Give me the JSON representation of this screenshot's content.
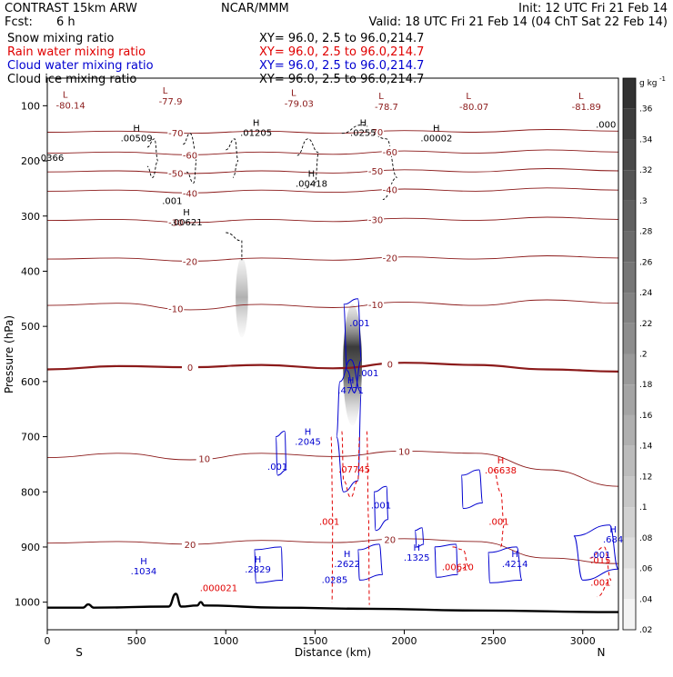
{
  "header": {
    "model": "CONTRAST 15km ARW",
    "org": "NCAR/MMM",
    "init": "Init: 12 UTC Fri 21 Feb 14",
    "fcst_label": "Fcst:",
    "fcst_value": "6 h",
    "valid": "Valid: 18 UTC Fri 21 Feb 14 (04 ChT Sat 22 Feb 14)"
  },
  "fields": [
    {
      "name": "Snow mixing ratio",
      "xy": "",
      "color": "#000000"
    },
    {
      "name": "Rain water mixing ratio",
      "xy": "XY=  96.0,  2.5 to  96.0,214.7",
      "color": "#e00000"
    },
    {
      "name": "Cloud water mixing ratio",
      "xy": "XY=  96.0,  2.5 to  96.0,214.7",
      "color": "#0000d0"
    },
    {
      "name": "Cloud ice mixing ratio",
      "xy": "XY=  96.0,  2.5 to  96.0,214.7",
      "color": "#000000"
    }
  ],
  "snow_xy": "XY=  96.0,  2.5 to  96.0,214.7",
  "chart_data": {
    "type": "contour",
    "xlabel": "Distance (km)",
    "ylabel": "Pressure (hPa)",
    "xlim": [
      0,
      3200
    ],
    "ylim": [
      1050,
      50
    ],
    "x_ticks": [
      0,
      500,
      1000,
      1500,
      2000,
      2500,
      3000
    ],
    "y_ticks": [
      100,
      200,
      300,
      400,
      500,
      600,
      700,
      800,
      900,
      1000
    ],
    "x_end_labels": {
      "left": "S",
      "right": "N"
    },
    "colorbar": {
      "unit": "g kg",
      "unit_exp": "-1",
      "ticks": [
        ".36",
        ".34",
        ".32",
        ".3",
        ".28",
        ".26",
        ".24",
        ".22",
        ".2",
        ".18",
        ".16",
        ".14",
        ".12",
        ".1",
        ".08",
        ".06",
        ".04",
        ".02"
      ],
      "colors": {
        "low": "#ffffff",
        "high": "#333333"
      }
    },
    "colors": {
      "temperature": "#8b1a1a",
      "rain": "#e00000",
      "cloud_water": "#0000d0",
      "cloud_ice": "#000000",
      "terrain": "#000000"
    },
    "temperature_contours": [
      {
        "level": -70,
        "label": "-70",
        "points": [
          [
            0,
            148
          ],
          [
            400,
            146
          ],
          [
            800,
            150
          ],
          [
            1200,
            146
          ],
          [
            1600,
            150
          ],
          [
            2000,
            145
          ],
          [
            2400,
            148
          ],
          [
            2800,
            143
          ],
          [
            3200,
            146
          ]
        ]
      },
      {
        "level": -60,
        "label": "-60",
        "points": [
          [
            0,
            186
          ],
          [
            400,
            184
          ],
          [
            800,
            189
          ],
          [
            1200,
            184
          ],
          [
            1600,
            188
          ],
          [
            2000,
            182
          ],
          [
            2400,
            186
          ],
          [
            2800,
            180
          ],
          [
            3200,
            184
          ]
        ]
      },
      {
        "level": -50,
        "label": "-50",
        "points": [
          [
            0,
            220
          ],
          [
            400,
            218
          ],
          [
            800,
            223
          ],
          [
            1200,
            218
          ],
          [
            1600,
            222
          ],
          [
            2000,
            216
          ],
          [
            2400,
            220
          ],
          [
            2800,
            214
          ],
          [
            3200,
            218
          ]
        ]
      },
      {
        "level": -40,
        "label": "-40",
        "points": [
          [
            0,
            255
          ],
          [
            400,
            253
          ],
          [
            800,
            258
          ],
          [
            1200,
            253
          ],
          [
            1600,
            257
          ],
          [
            2000,
            251
          ],
          [
            2400,
            255
          ],
          [
            2800,
            249
          ],
          [
            3200,
            253
          ]
        ]
      },
      {
        "level": -30,
        "label": "-30",
        "points": [
          [
            0,
            308
          ],
          [
            400,
            306
          ],
          [
            800,
            312
          ],
          [
            1200,
            306
          ],
          [
            1600,
            310
          ],
          [
            2000,
            304
          ],
          [
            2400,
            308
          ],
          [
            2800,
            302
          ],
          [
            3200,
            306
          ]
        ]
      },
      {
        "level": -20,
        "label": "-20",
        "points": [
          [
            0,
            378
          ],
          [
            400,
            376
          ],
          [
            800,
            382
          ],
          [
            1200,
            376
          ],
          [
            1600,
            380
          ],
          [
            2000,
            374
          ],
          [
            2400,
            378
          ],
          [
            2800,
            372
          ],
          [
            3200,
            376
          ]
        ]
      },
      {
        "level": -10,
        "label": "-10",
        "points": [
          [
            0,
            462
          ],
          [
            400,
            458
          ],
          [
            800,
            470
          ],
          [
            1200,
            460
          ],
          [
            1600,
            466
          ],
          [
            2000,
            456
          ],
          [
            2400,
            462
          ],
          [
            2800,
            452
          ],
          [
            3200,
            458
          ]
        ]
      },
      {
        "level": 0,
        "label": "0",
        "points": [
          [
            0,
            578
          ],
          [
            400,
            572
          ],
          [
            800,
            574
          ],
          [
            1200,
            570
          ],
          [
            1600,
            576
          ],
          [
            2000,
            566
          ],
          [
            2400,
            570
          ],
          [
            2800,
            578
          ],
          [
            3200,
            582
          ]
        ]
      },
      {
        "level": 10,
        "label": "10",
        "points": [
          [
            0,
            738
          ],
          [
            400,
            730
          ],
          [
            800,
            742
          ],
          [
            1200,
            730
          ],
          [
            1600,
            736
          ],
          [
            2000,
            726
          ],
          [
            2400,
            730
          ],
          [
            2800,
            760
          ],
          [
            3200,
            790
          ]
        ]
      },
      {
        "level": 20,
        "label": "20",
        "points": [
          [
            0,
            893
          ],
          [
            400,
            890
          ],
          [
            800,
            895
          ],
          [
            1200,
            888
          ],
          [
            1600,
            892
          ],
          [
            2000,
            885
          ],
          [
            2400,
            890
          ],
          [
            2800,
            920
          ],
          [
            3200,
            930
          ]
        ]
      }
    ],
    "min_labels": [
      {
        "x": 100,
        "p": 95,
        "type": "L",
        "value": "-80.14"
      },
      {
        "x": 660,
        "p": 88,
        "type": "L",
        "value": "-77.9"
      },
      {
        "x": 1380,
        "p": 92,
        "type": "L",
        "value": "-79.03"
      },
      {
        "x": 1870,
        "p": 98,
        "type": "L",
        "value": "-78.7"
      },
      {
        "x": 2360,
        "p": 98,
        "type": "L",
        "value": "-80.07"
      },
      {
        "x": 2990,
        "p": 98,
        "type": "L",
        "value": "-81.89"
      }
    ],
    "max_labels": [
      {
        "x": 500,
        "p": 158,
        "value": ".00509",
        "color": "#000000"
      },
      {
        "x": 1170,
        "p": 148,
        "value": ".01205",
        "color": "#000000"
      },
      {
        "x": 1770,
        "p": 148,
        "value": ".0255",
        "color": "#000000"
      },
      {
        "x": 2180,
        "p": 158,
        "value": ".00002",
        "color": "#000000"
      },
      {
        "x": 1480,
        "p": 240,
        "value": ".00418",
        "color": "#000000"
      },
      {
        "x": 780,
        "p": 310,
        "value": ".00621",
        "color": "#000000"
      },
      {
        "x": 1700,
        "p": 615,
        "value": ".4771",
        "color": "#0000d0"
      },
      {
        "x": 1460,
        "p": 708,
        "value": ".2045",
        "color": "#0000d0"
      },
      {
        "x": 2540,
        "p": 760,
        "value": ".06638",
        "color": "#e00000"
      },
      {
        "x": 1680,
        "p": 930,
        "value": ".2622",
        "color": "#0000d0"
      },
      {
        "x": 1180,
        "p": 940,
        "value": ".2829",
        "color": "#0000d0"
      },
      {
        "x": 2070,
        "p": 918,
        "value": ".1325",
        "color": "#0000d0"
      },
      {
        "x": 2620,
        "p": 930,
        "value": ".4214",
        "color": "#0000d0"
      },
      {
        "x": 540,
        "p": 943,
        "value": ".1034",
        "color": "#0000d0"
      },
      {
        "x": 3170,
        "p": 885,
        "value": ".684",
        "color": "#0000d0"
      }
    ],
    "contour_labels": [
      {
        "x": 20,
        "p": 200,
        "value": ".0366",
        "color": "#000000"
      },
      {
        "x": 700,
        "p": 278,
        "value": ".001",
        "color": "#000000"
      },
      {
        "x": 1750,
        "p": 500,
        "value": ".001",
        "color": "#0000d0"
      },
      {
        "x": 1800,
        "p": 590,
        "value": ".001",
        "color": "#0000d0"
      },
      {
        "x": 1290,
        "p": 760,
        "value": ".001",
        "color": "#0000d0"
      },
      {
        "x": 1870,
        "p": 830,
        "value": ".001",
        "color": "#0000d0"
      },
      {
        "x": 1580,
        "p": 860,
        "value": ".001",
        "color": "#e00000"
      },
      {
        "x": 2530,
        "p": 860,
        "value": ".001",
        "color": "#e00000"
      },
      {
        "x": 1610,
        "p": 965,
        "value": ".0285",
        "color": "#0000d0"
      },
      {
        "x": 960,
        "p": 980,
        "value": ".000021",
        "color": "#e00000"
      },
      {
        "x": 1720,
        "p": 765,
        "value": ".07745",
        "color": "#e00000"
      },
      {
        "x": 2300,
        "p": 942,
        "value": ".00610",
        "color": "#e00000"
      },
      {
        "x": 3100,
        "p": 930,
        "value": ".015",
        "color": "#e00000"
      },
      {
        "x": 3100,
        "p": 970,
        "value": ".001",
        "color": "#e00000"
      },
      {
        "x": 3100,
        "p": 920,
        "value": ".001",
        "color": "#0000d0"
      },
      {
        "x": 3130,
        "p": 140,
        "value": ".000",
        "color": "#000000"
      }
    ],
    "snow_shading": [
      {
        "x": 1090,
        "p_top": 375,
        "p_bottom": 520,
        "max": 0.12
      },
      {
        "x": 1710,
        "p_top": 460,
        "p_bottom": 680,
        "max": 0.36
      }
    ],
    "terrain": [
      [
        0,
        1010
      ],
      [
        200,
        1010
      ],
      [
        230,
        1004
      ],
      [
        260,
        1010
      ],
      [
        680,
        1008
      ],
      [
        720,
        985
      ],
      [
        750,
        1008
      ],
      [
        840,
        1006
      ],
      [
        860,
        1000
      ],
      [
        880,
        1006
      ],
      [
        1300,
        1010
      ],
      [
        1800,
        1012
      ],
      [
        2400,
        1015
      ],
      [
        3200,
        1018
      ]
    ]
  }
}
